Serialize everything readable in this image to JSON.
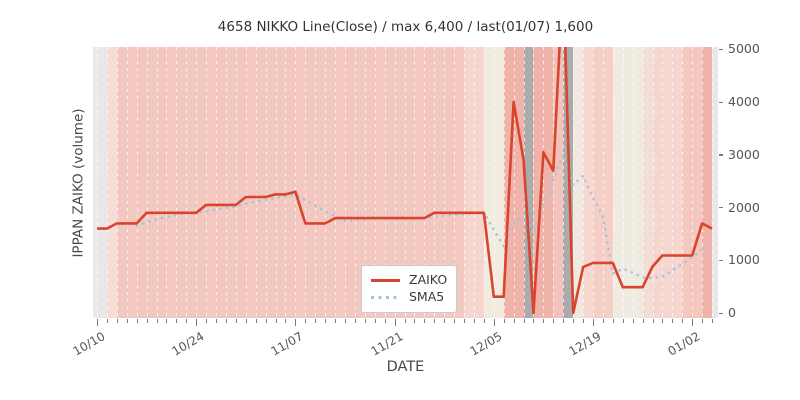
{
  "title": "4658 NIKKO Line(Close) / max 6,400 / last(01/07) 1,600",
  "axes": {
    "xlabel": "DATE",
    "ylabel": "IPPAN ZAIKO (volume)",
    "yticks": [
      0,
      1000,
      2000,
      3000,
      4000,
      5000
    ],
    "xticks": [
      {
        "index": 0,
        "label": "10/10"
      },
      {
        "index": 10,
        "label": "10/24"
      },
      {
        "index": 20,
        "label": "11/07"
      },
      {
        "index": 30,
        "label": "11/21"
      },
      {
        "index": 40,
        "label": "12/05"
      },
      {
        "index": 50,
        "label": "12/19"
      },
      {
        "index": 60,
        "label": "01/02"
      }
    ]
  },
  "legend": [
    {
      "label": "ZAIKO",
      "style": "solid",
      "color": "#d8442e"
    },
    {
      "label": "SMA5",
      "style": "dotted",
      "color": "#a6c3de"
    }
  ],
  "colors": {
    "plot_background": "#eaeaea",
    "zaiko_line": "#d8442e",
    "sma5_line": "#a6c3de",
    "missing_day_band": "#ababab"
  },
  "chart_data": {
    "type": "line",
    "title": "4658 NIKKO Line(Close) / max 6,400 / last(01/07) 1,600",
    "xlabel": "DATE",
    "ylabel": "IPPAN ZAIKO (volume)",
    "x_unit": "consecutive trading days (10/10 through 01/07, one point per day)",
    "n_points": 63,
    "ylim": [
      -100,
      5050
    ],
    "grid": "white dashed vertical line per day",
    "legend_position": "inside plot, lower center",
    "series": [
      {
        "name": "ZAIKO",
        "style": "solid",
        "color": "#d8442e",
        "values": [
          1600,
          1600,
          1700,
          1700,
          1700,
          1900,
          1900,
          1900,
          1900,
          1900,
          1900,
          2050,
          2050,
          2050,
          2050,
          2200,
          2200,
          2200,
          2250,
          2250,
          2300,
          1700,
          1700,
          1700,
          1800,
          1800,
          1800,
          1800,
          1800,
          1800,
          1800,
          1800,
          1800,
          1800,
          1900,
          1900,
          1900,
          1900,
          1900,
          1900,
          310,
          310,
          4000,
          2900,
          0,
          3050,
          2700,
          6400,
          0,
          870,
          950,
          950,
          950,
          490,
          490,
          490,
          880,
          1090,
          1090,
          1090,
          1090,
          1700,
          1600
        ]
      },
      {
        "name": "SMA5",
        "style": "dotted",
        "color": "#a6c3de",
        "derived": "5-day trailing moving average of ZAIKO (computed)"
      }
    ],
    "background_day_colors": [
      "#e9e7e7",
      "#f8dcd5",
      "#f2c8c0",
      "#f2c8c0",
      "#f2c8c0",
      "#f2c8c0",
      "#f2c8c0",
      "#f2c8c0",
      "#f2c8c0",
      "#f2c8c0",
      "#f2c8c0",
      "#f2c8c0",
      "#f2c8c0",
      "#f2c8c0",
      "#f2c8c0",
      "#f2c8c0",
      "#f2c8c0",
      "#f2c8c0",
      "#f2c8c0",
      "#f2c8c0",
      "#f2c8c0",
      "#f2c8c0",
      "#f2c8c0",
      "#f2c8c0",
      "#f2c8c0",
      "#f2c8c0",
      "#f2c8c0",
      "#f2c8c0",
      "#f2c8c0",
      "#f2c8c0",
      "#f2c8c0",
      "#f2c8c0",
      "#f2c8c0",
      "#f2c8c0",
      "#f2c8c0",
      "#f2c8c0",
      "#f2c8c0",
      "#f6d5ce",
      "#f6d5ce",
      "#f1ebe0",
      "#f1ebe0",
      "#efb3a9",
      "#efb3a9",
      "#ababab",
      "#efb3a9",
      "#efb3a9",
      "#f2c3ba",
      "#ababab",
      "#f0e9df",
      "#f7d8d1",
      "#f5cec6",
      "#f5cec6",
      "#f0ebe1",
      "#f0ebe1",
      "#f0ebe1",
      "#f3ded6",
      "#f6d6cf",
      "#f6d6cf",
      "#f6d6cf",
      "#f4c7bf",
      "#f4c7bf",
      "#efb3a9",
      "#e9e7e7"
    ]
  }
}
